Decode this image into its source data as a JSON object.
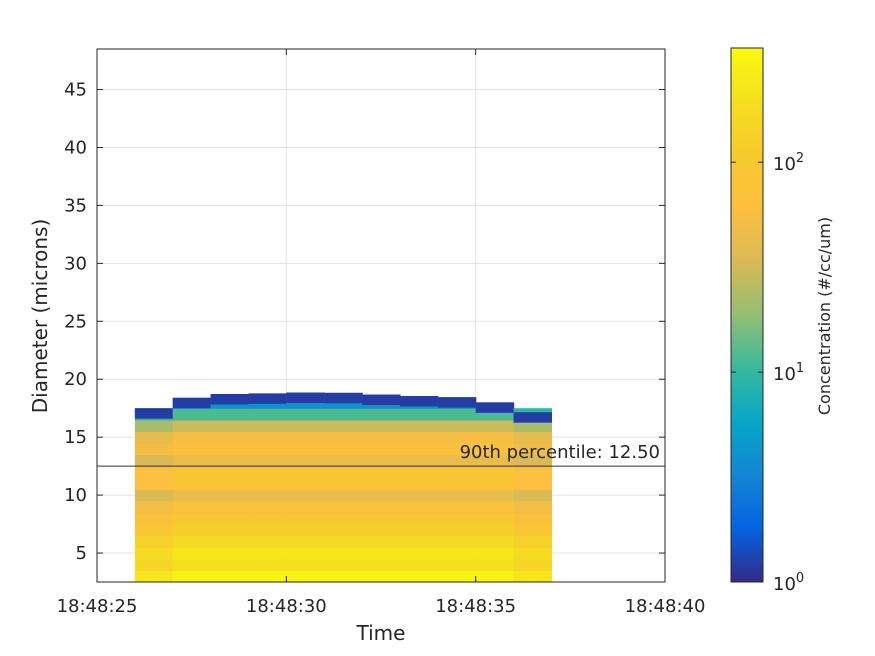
{
  "chart_data": {
    "type": "heatmap",
    "xlabel": "Time",
    "ylabel": "Diameter (microns)",
    "x_ticks": [
      "18:48:25",
      "18:48:30",
      "18:48:35",
      "18:48:40"
    ],
    "x_tick_seconds": [
      25,
      30,
      35,
      40
    ],
    "xlim_seconds": [
      25,
      40
    ],
    "y_ticks": [
      5,
      10,
      15,
      20,
      25,
      30,
      35,
      40,
      45
    ],
    "ylim": [
      2.5,
      48.5
    ],
    "grid": true,
    "colorbar": {
      "label": "Concentration (#/cc/um)",
      "scale": "log",
      "range": [
        1,
        350
      ],
      "ticks": [
        {
          "value": 1,
          "base": "10",
          "exp": "0"
        },
        {
          "value": 10,
          "base": "10",
          "exp": "1"
        },
        {
          "value": 100,
          "base": "10",
          "exp": "2"
        }
      ],
      "colormap": "parula"
    },
    "annotation": {
      "text": "90th percentile: 12.50",
      "y": 12.5
    },
    "time_seconds": [
      26,
      27,
      28,
      29,
      30,
      31,
      32,
      33,
      34,
      35,
      36,
      37
    ],
    "diameter_bins": [
      3,
      4,
      5,
      6,
      7,
      8,
      9,
      10,
      11,
      12,
      13,
      14,
      15,
      16,
      17,
      18
    ],
    "concentration_profile": [
      300,
      200,
      230,
      170,
      120,
      90,
      70,
      45,
      80,
      85,
      45,
      70,
      55,
      30,
      12,
      4
    ],
    "top_edge": [
      {
        "t": 26,
        "d": 16.9
      },
      {
        "t": 27,
        "d": 18.1
      },
      {
        "t": 28,
        "d": 18.7
      },
      {
        "t": 30,
        "d": 18.8
      },
      {
        "t": 31,
        "d": 18.9
      },
      {
        "t": 33,
        "d": 18.6
      },
      {
        "t": 34,
        "d": 18.5
      },
      {
        "t": 35,
        "d": 18.4
      },
      {
        "t": 36,
        "d": 17.6
      },
      {
        "t": 37,
        "d": 16.7
      }
    ]
  }
}
